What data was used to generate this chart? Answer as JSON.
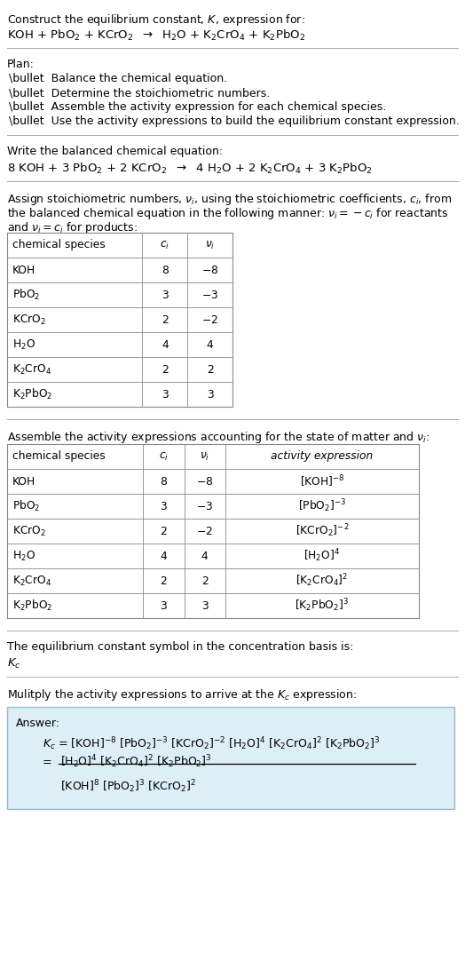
{
  "bg_color": "#ffffff",
  "text_color": "#000000",
  "table_border_color": "#888888",
  "answer_box_color": "#ddeef6",
  "answer_box_border": "#99bbcc",
  "font_size": 9.0,
  "font_size_formula": 9.5,
  "sections": {
    "title_line1": "Construct the equilibrium constant, $K$, expression for:",
    "title_line2": "KOH + PbO$_2$ + KCrO$_2$  $\\rightarrow$  H$_2$O + K$_2$CrO$_4$ + K$_2$PbO$_2$",
    "plan_header": "Plan:",
    "plan_items": [
      "\\bullet  Balance the chemical equation.",
      "\\bullet  Determine the stoichiometric numbers.",
      "\\bullet  Assemble the activity expression for each chemical species.",
      "\\bullet  Use the activity expressions to build the equilibrium constant expression."
    ],
    "balanced_header": "Write the balanced chemical equation:",
    "balanced_eq": "8 KOH + 3 PbO$_2$ + 2 KCrO$_2$  $\\rightarrow$  4 H$_2$O + 2 K$_2$CrO$_4$ + 3 K$_2$PbO$_2$",
    "stoich_text1": "Assign stoichiometric numbers, $\\nu_i$, using the stoichiometric coefficients, $c_i$, from",
    "stoich_text2": "the balanced chemical equation in the following manner: $\\nu_i = -c_i$ for reactants",
    "stoich_text3": "and $\\nu_i = c_i$ for products:",
    "table1_headers": [
      "chemical species",
      "$c_i$",
      "$\\nu_i$"
    ],
    "table1_rows": [
      [
        "KOH",
        "8",
        "$-$8"
      ],
      [
        "PbO$_2$",
        "3",
        "$-$3"
      ],
      [
        "KCrO$_2$",
        "2",
        "$-$2"
      ],
      [
        "H$_2$O",
        "4",
        "4"
      ],
      [
        "K$_2$CrO$_4$",
        "2",
        "2"
      ],
      [
        "K$_2$PbO$_2$",
        "3",
        "3"
      ]
    ],
    "activity_text": "Assemble the activity expressions accounting for the state of matter and $\\nu_i$:",
    "table2_headers": [
      "chemical species",
      "$c_i$",
      "$\\nu_i$",
      "activity expression"
    ],
    "table2_rows": [
      [
        "KOH",
        "8",
        "$-$8",
        "[KOH]$^{-8}$"
      ],
      [
        "PbO$_2$",
        "3",
        "$-$3",
        "[PbO$_2$]$^{-3}$"
      ],
      [
        "KCrO$_2$",
        "2",
        "$-$2",
        "[KCrO$_2$]$^{-2}$"
      ],
      [
        "H$_2$O",
        "4",
        "4",
        "[H$_2$O]$^{4}$"
      ],
      [
        "K$_2$CrO$_4$",
        "2",
        "2",
        "[K$_2$CrO$_4$]$^{2}$"
      ],
      [
        "K$_2$PbO$_2$",
        "3",
        "3",
        "[K$_2$PbO$_2$]$^{3}$"
      ]
    ],
    "kc_text1": "The equilibrium constant symbol in the concentration basis is:",
    "kc_symbol": "$K_c$",
    "multiply_text": "Mulitply the activity expressions to arrive at the $K_c$ expression:",
    "answer_label": "Answer:",
    "answer_line1": "$K_c$ = [KOH]$^{-8}$ [PbO$_2$]$^{-3}$ [KCrO$_2$]$^{-2}$ [H$_2$O]$^{4}$ [K$_2$CrO$_4$]$^{2}$ [K$_2$PbO$_2$]$^{3}$",
    "answer_eq": "=",
    "answer_num": "[H$_2$O]$^{4}$ [K$_2$CrO$_4$]$^{2}$ [K$_2$PbO$_2$]$^{3}$",
    "answer_den": "[KOH]$^{8}$ [PbO$_2$]$^{3}$ [KCrO$_2$]$^{2}$"
  }
}
